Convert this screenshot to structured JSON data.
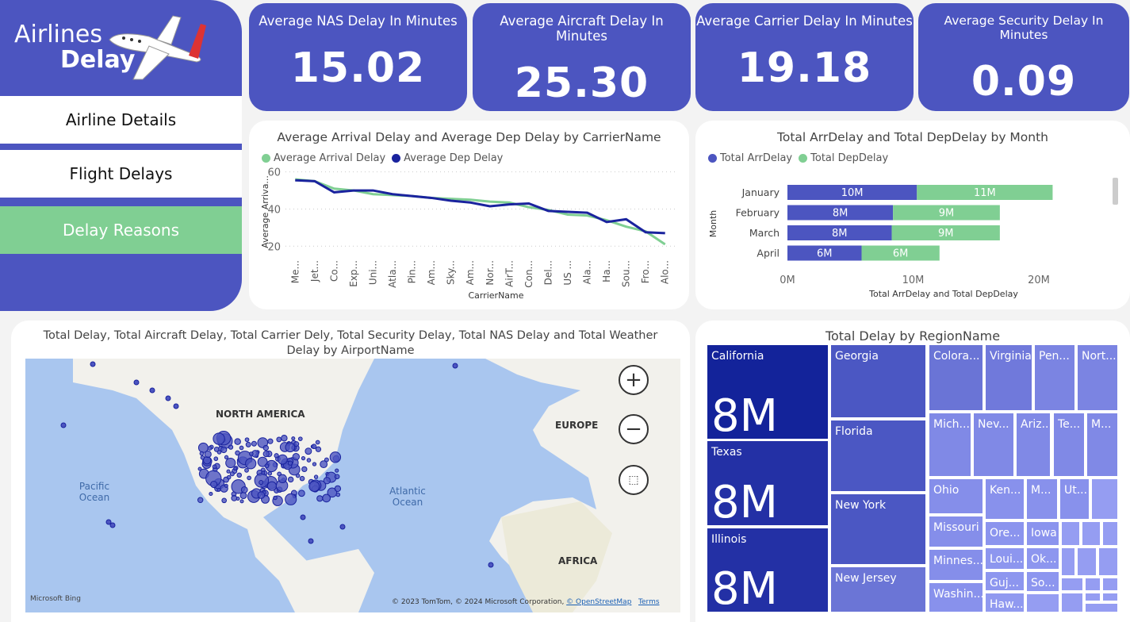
{
  "nav": {
    "logo_line1": "Airlines",
    "logo_line2": "Delay",
    "items": [
      "Airline Details",
      "Flight Delays",
      "Delay Reasons"
    ],
    "active": 2
  },
  "kpis": [
    {
      "title": "Average NAS Delay In Minutes",
      "value": "15.02"
    },
    {
      "title": "Average Aircraft Delay In Minutes",
      "value": "25.30"
    },
    {
      "title": "Average Carrier Delay In Minutes",
      "value": "19.18"
    },
    {
      "title": "Average Security Delay In Minutes",
      "value": "0.09"
    }
  ],
  "colors": {
    "primary": "#4c55c0",
    "green": "#80cf93",
    "dark": "#1a239e"
  },
  "chart_data": [
    {
      "type": "line",
      "title": "Average Arrival Delay and Average Dep Delay by CarrierName",
      "xlabel": "CarrierName",
      "ylabel": "Average Arriva...",
      "ylim": [
        15,
        62
      ],
      "yticks": [
        "20",
        "40",
        "60"
      ],
      "categories": [
        "Me...",
        "Jet...",
        "Co...",
        "Exp...",
        "Uni...",
        "Atla...",
        "Pin...",
        "Am...",
        "Sky...",
        "Am...",
        "Nor...",
        "AirT...",
        "Con...",
        "Del...",
        "US ...",
        "Ala...",
        "Ha...",
        "Sou...",
        "Fro...",
        "Alo..."
      ],
      "series": [
        {
          "name": "Average Arrival Delay",
          "color": "#80cf93",
          "values": [
            56,
            55,
            51,
            50,
            48,
            47.5,
            47,
            46,
            45.5,
            45,
            44,
            43.5,
            41,
            39.5,
            37,
            36.5,
            34,
            30.5,
            28,
            21
          ]
        },
        {
          "name": "Average Dep Delay",
          "color": "#1a239e",
          "values": [
            55.5,
            55,
            49,
            50,
            50,
            48,
            47,
            46,
            44.5,
            43.5,
            41.5,
            42.5,
            43,
            39,
            38.5,
            38,
            33,
            34.5,
            27.5,
            27
          ]
        }
      ]
    },
    {
      "type": "bar",
      "title": "Total ArrDelay and Total DepDelay by Month",
      "xlabel": "Total ArrDelay and Total DepDelay",
      "ylabel": "Month",
      "xlim": [
        0,
        22
      ],
      "xticks": [
        "0M",
        "10M",
        "20M"
      ],
      "categories": [
        "January",
        "February",
        "March",
        "April"
      ],
      "series": [
        {
          "name": "Total ArrDelay",
          "color": "#4c55c0",
          "values": [
            10.3,
            8.4,
            8.3,
            5.9
          ],
          "labels": [
            "10M",
            "8M",
            "8M",
            "6M"
          ]
        },
        {
          "name": "Total DepDelay",
          "color": "#80cf93",
          "values": [
            10.8,
            8.5,
            8.6,
            6.2
          ],
          "labels": [
            "11M",
            "9M",
            "9M",
            "6M"
          ]
        }
      ]
    }
  ],
  "map": {
    "title": "Total Delay, Total Aircraft Delay, Total Carrier Dely, Total Security Delay, Total NAS Delay and Total Weather Delay by AirportName",
    "labels": [
      "NORTH AMERICA",
      "EUROPE",
      "Pacific Ocean",
      "Atlantic Ocean",
      "AFRICA"
    ],
    "brand": "Microsoft Bing",
    "attribution": "© 2023 TomTom, © 2024 Microsoft Corporation, ",
    "osm": "© OpenStreetMap",
    "terms": "Terms"
  },
  "treemap": {
    "title": "Total Delay by RegionName",
    "cells": [
      {
        "n": "California",
        "v": "8M"
      },
      {
        "n": "Texas",
        "v": "8M"
      },
      {
        "n": "Illinois",
        "v": "8M"
      },
      {
        "n": "Georgia"
      },
      {
        "n": "Florida"
      },
      {
        "n": "New York"
      },
      {
        "n": "New Jersey"
      },
      {
        "n": "Colora..."
      },
      {
        "n": "Virginia"
      },
      {
        "n": "Pen..."
      },
      {
        "n": "Nort..."
      },
      {
        "n": "Mich..."
      },
      {
        "n": "Nev..."
      },
      {
        "n": "Ariz..."
      },
      {
        "n": "Te..."
      },
      {
        "n": "M..."
      },
      {
        "n": "Ohio"
      },
      {
        "n": "Missouri"
      },
      {
        "n": "Minnes..."
      },
      {
        "n": "Washin..."
      },
      {
        "n": "Ken..."
      },
      {
        "n": "M..."
      },
      {
        "n": "Ut..."
      },
      {
        "n": "Ore..."
      },
      {
        "n": "Iowa"
      },
      {
        "n": "Loui..."
      },
      {
        "n": "Ok..."
      },
      {
        "n": "Guj..."
      },
      {
        "n": "So..."
      },
      {
        "n": "Haw..."
      }
    ]
  }
}
